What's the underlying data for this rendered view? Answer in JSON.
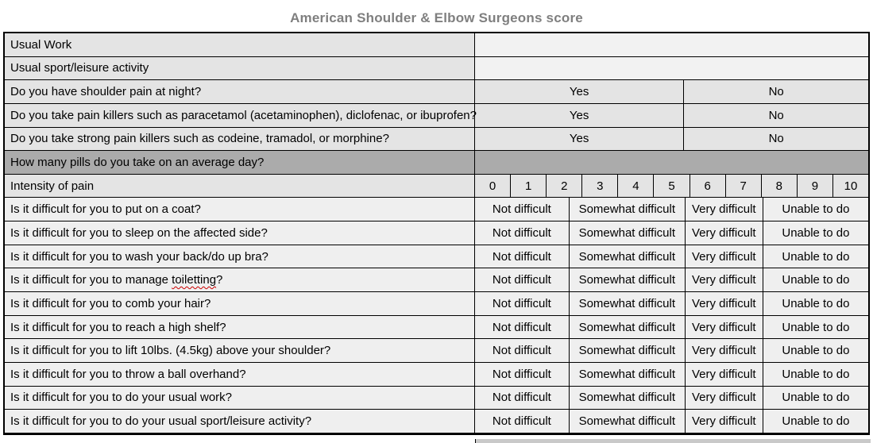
{
  "title": "American Shoulder & Elbow Surgeons score",
  "colors": {
    "title_gray": "#7f7f7f",
    "row_light": "#e4e4e4",
    "row_lighter": "#efefef",
    "row_dark": "#ababab",
    "squiggle_red": "#cc0000",
    "fragment_gray": "#c9c9c9",
    "border_black": "#000000"
  },
  "table": {
    "yesno_options": [
      "Yes",
      "No"
    ],
    "scale_options": [
      "0",
      "1",
      "2",
      "3",
      "4",
      "5",
      "6",
      "7",
      "8",
      "9",
      "10"
    ],
    "difficulty_options": [
      "Not difficult",
      "Somewhat difficult",
      "Very difficult",
      "Unable to do"
    ],
    "rows": [
      {
        "type": "empty",
        "label": "Usual Work"
      },
      {
        "type": "empty",
        "label": "Usual sport/leisure activity"
      },
      {
        "type": "yesno",
        "label": "Do you have shoulder pain at night?"
      },
      {
        "type": "yesno",
        "label": "Do you take pain killers such as paracetamol (acetaminophen), diclofenac, or ibuprofen?"
      },
      {
        "type": "yesno",
        "label": "Do you take strong pain killers such as codeine, tramadol, or morphine?"
      },
      {
        "type": "shaded",
        "label": "How many pills do you take on an average day?"
      },
      {
        "type": "scale",
        "label": "Intensity of pain"
      },
      {
        "type": "difficulty",
        "label": "Is it difficult for you to put on a coat?"
      },
      {
        "type": "difficulty",
        "label": "Is it difficult for you to sleep on the affected side?"
      },
      {
        "type": "difficulty",
        "label": "Is it difficult for you to wash your back/do up bra?"
      },
      {
        "type": "difficulty",
        "label_parts": {
          "before": "Is it difficult for you to manage ",
          "squiggle": "toiletting",
          "after": "?"
        }
      },
      {
        "type": "difficulty",
        "label": "Is it difficult for you to comb your hair?"
      },
      {
        "type": "difficulty",
        "label": "Is it difficult for you to reach a high shelf?"
      },
      {
        "type": "difficulty",
        "label": "Is it difficult for you to lift 10lbs. (4.5kg) above your shoulder?"
      },
      {
        "type": "difficulty",
        "label": "Is it difficult for you to throw a ball overhand?"
      },
      {
        "type": "difficulty",
        "label": "Is it difficult for you to do your usual work?"
      },
      {
        "type": "difficulty",
        "label": "Is it difficult for you to do your usual sport/leisure activity?"
      }
    ]
  }
}
